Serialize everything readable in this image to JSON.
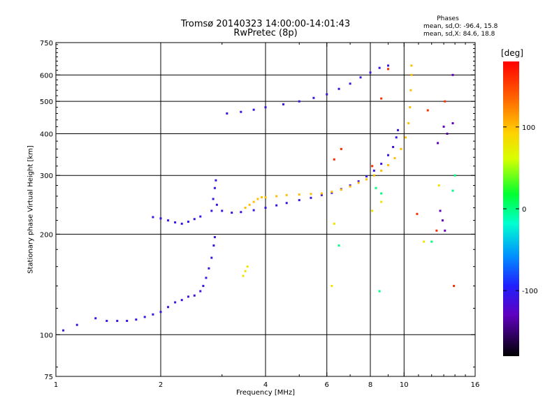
{
  "header": {
    "title_line1": "Tromsø 20140323 14:00:00-14:01:43",
    "title_line2": "RwPretec (8p)",
    "phases_title": "Phases",
    "stat_o": "mean, sd,O: -96.4, 15.8",
    "stat_x": "mean, sd,X:  84.6, 18.8"
  },
  "colorbar": {
    "unit": "[deg]",
    "ticks": [
      {
        "value": 100,
        "label": "100"
      },
      {
        "value": 0,
        "label": "0"
      },
      {
        "value": -100,
        "label": "-100"
      }
    ],
    "range": [
      -180,
      180
    ]
  },
  "chart_data": {
    "type": "scatter",
    "title": "Tromsø 20140323 14:00:00-14:01:43",
    "subtitle": "RwPretec (8p)",
    "xlabel": "Frequency [MHz]",
    "ylabel": "Stationary phase Virtual Height [km]",
    "xscale": "log",
    "yscale": "log",
    "xlim": [
      1,
      16
    ],
    "ylim": [
      75,
      750
    ],
    "xticks": [
      1,
      2,
      4,
      6,
      8,
      10,
      16
    ],
    "yticks": [
      75,
      100,
      200,
      300,
      400,
      500,
      600,
      750
    ],
    "grid_x": [
      2,
      4,
      6,
      8,
      10
    ],
    "grid_y": [
      100,
      200,
      300,
      400,
      500,
      600
    ],
    "color_meaning": "phase [deg]",
    "series": [
      {
        "points": [
          [
            1.05,
            103
          ],
          [
            1.15,
            107
          ],
          [
            1.3,
            112
          ],
          [
            1.4,
            110
          ],
          [
            1.5,
            110
          ],
          [
            1.6,
            110
          ],
          [
            1.7,
            111
          ],
          [
            1.8,
            113
          ],
          [
            1.9,
            115
          ],
          [
            2.0,
            117
          ],
          [
            2.1,
            121
          ],
          [
            2.2,
            125
          ],
          [
            2.3,
            127
          ],
          [
            2.4,
            130
          ],
          [
            2.5,
            131
          ],
          [
            2.6,
            135
          ],
          [
            2.65,
            140
          ],
          [
            2.7,
            148
          ],
          [
            2.75,
            158
          ],
          [
            2.8,
            170
          ],
          [
            2.84,
            185
          ],
          [
            2.86,
            196
          ]
        ],
        "phase": -110
      },
      {
        "points": [
          [
            1.9,
            225
          ],
          [
            2.0,
            223
          ],
          [
            2.1,
            220
          ],
          [
            2.2,
            217
          ],
          [
            2.3,
            215
          ],
          [
            2.4,
            218
          ],
          [
            2.5,
            222
          ],
          [
            2.6,
            226
          ]
        ],
        "phase": -105
      },
      {
        "points": [
          [
            2.8,
            235
          ],
          [
            2.83,
            255
          ],
          [
            2.86,
            275
          ],
          [
            2.88,
            290
          ],
          [
            2.9,
            245
          ],
          [
            3.0,
            235
          ],
          [
            3.2,
            232
          ],
          [
            3.4,
            233
          ],
          [
            3.7,
            236
          ],
          [
            4.0,
            240
          ],
          [
            4.3,
            244
          ],
          [
            4.6,
            248
          ],
          [
            5.0,
            253
          ],
          [
            5.4,
            257
          ],
          [
            5.8,
            262
          ],
          [
            6.2,
            266
          ],
          [
            6.6,
            273
          ],
          [
            7.0,
            280
          ],
          [
            7.4,
            288
          ],
          [
            7.8,
            298
          ],
          [
            8.2,
            310
          ],
          [
            8.6,
            325
          ],
          [
            9.0,
            345
          ],
          [
            9.3,
            365
          ],
          [
            9.5,
            390
          ],
          [
            9.6,
            410
          ]
        ],
        "phase": -110
      },
      {
        "points": [
          [
            3.5,
            240
          ],
          [
            3.6,
            245
          ],
          [
            3.7,
            250
          ],
          [
            3.8,
            255
          ],
          [
            3.9,
            258
          ],
          [
            4.0,
            258
          ],
          [
            4.3,
            260
          ],
          [
            4.6,
            262
          ],
          [
            5.0,
            263
          ],
          [
            5.4,
            264
          ],
          [
            5.8,
            265
          ],
          [
            6.2,
            268
          ],
          [
            6.6,
            272
          ],
          [
            7.0,
            278
          ],
          [
            7.4,
            285
          ],
          [
            7.8,
            292
          ],
          [
            8.2,
            300
          ],
          [
            8.6,
            310
          ],
          [
            9.0,
            322
          ],
          [
            9.4,
            338
          ],
          [
            9.8,
            360
          ],
          [
            10.1,
            390
          ],
          [
            10.3,
            430
          ],
          [
            10.4,
            480
          ],
          [
            10.45,
            540
          ],
          [
            10.5,
            600
          ],
          [
            10.5,
            640
          ]
        ],
        "phase": 100
      },
      {
        "points": [
          [
            3.1,
            460
          ],
          [
            3.4,
            465
          ],
          [
            3.7,
            472
          ],
          [
            4.0,
            480
          ],
          [
            4.5,
            490
          ],
          [
            5.0,
            500
          ],
          [
            5.5,
            512
          ],
          [
            6.0,
            525
          ],
          [
            6.5,
            545
          ],
          [
            7.0,
            565
          ],
          [
            7.5,
            590
          ],
          [
            8.0,
            610
          ],
          [
            8.5,
            630
          ],
          [
            9.0,
            640
          ]
        ],
        "phase": -110
      },
      {
        "points": [
          [
            3.45,
            150
          ],
          [
            3.5,
            155
          ],
          [
            3.55,
            160
          ],
          [
            6.2,
            140
          ],
          [
            6.3,
            215
          ],
          [
            8.1,
            235
          ],
          [
            8.6,
            250
          ],
          [
            11.4,
            190
          ],
          [
            12.6,
            280
          ]
        ],
        "phase": 80
      },
      {
        "points": [
          [
            8.3,
            275
          ],
          [
            8.6,
            265
          ],
          [
            6.5,
            185
          ],
          [
            8.5,
            135
          ],
          [
            12.0,
            190
          ],
          [
            13.8,
            270
          ],
          [
            14.0,
            300
          ]
        ],
        "phase": 0
      },
      {
        "points": [
          [
            6.3,
            335
          ],
          [
            6.6,
            360
          ],
          [
            8.1,
            320
          ],
          [
            8.6,
            510
          ],
          [
            9.0,
            625
          ],
          [
            10.9,
            230
          ],
          [
            11.7,
            470
          ],
          [
            12.4,
            205
          ],
          [
            13.1,
            500
          ],
          [
            13.9,
            140
          ]
        ],
        "phase": 160
      },
      {
        "points": [
          [
            12.7,
            235
          ],
          [
            12.9,
            220
          ],
          [
            13.1,
            205
          ],
          [
            12.5,
            375
          ],
          [
            13.0,
            420
          ],
          [
            13.3,
            400
          ],
          [
            13.8,
            430
          ],
          [
            13.8,
            600
          ]
        ],
        "phase": -130
      }
    ]
  }
}
